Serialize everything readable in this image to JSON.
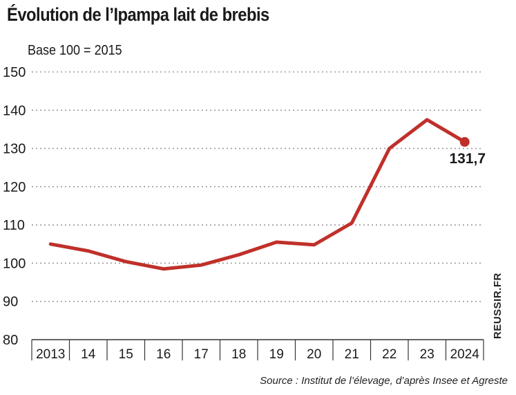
{
  "title": "Évolution de l’Ipampa lait de brebis",
  "subtitle": "Base 100 = 2015",
  "source": "Source : Institut de l’élevage, d’après Insee et Agreste",
  "credit": "REUSSIR.FR",
  "colors": {
    "line": "#c0302a",
    "grid": "#9a9a9a",
    "axis": "#333333"
  },
  "chart_data": {
    "type": "line",
    "x": [
      2013,
      2014,
      2015,
      2016,
      2017,
      2018,
      2019,
      2020,
      2021,
      2022,
      2023,
      2024
    ],
    "x_tick_labels": [
      "2013",
      "14",
      "15",
      "16",
      "17",
      "18",
      "19",
      "20",
      "21",
      "22",
      "23",
      "2024"
    ],
    "series": [
      {
        "values": [
          105,
          103.2,
          100.4,
          98.5,
          99.5,
          102.2,
          105.5,
          104.8,
          110.5,
          130,
          137.5,
          131.7
        ]
      }
    ],
    "ylim": [
      80,
      150
    ],
    "y_ticks": [
      80,
      90,
      100,
      110,
      120,
      130,
      140,
      150
    ],
    "grid": true,
    "end_label": "131,7"
  }
}
